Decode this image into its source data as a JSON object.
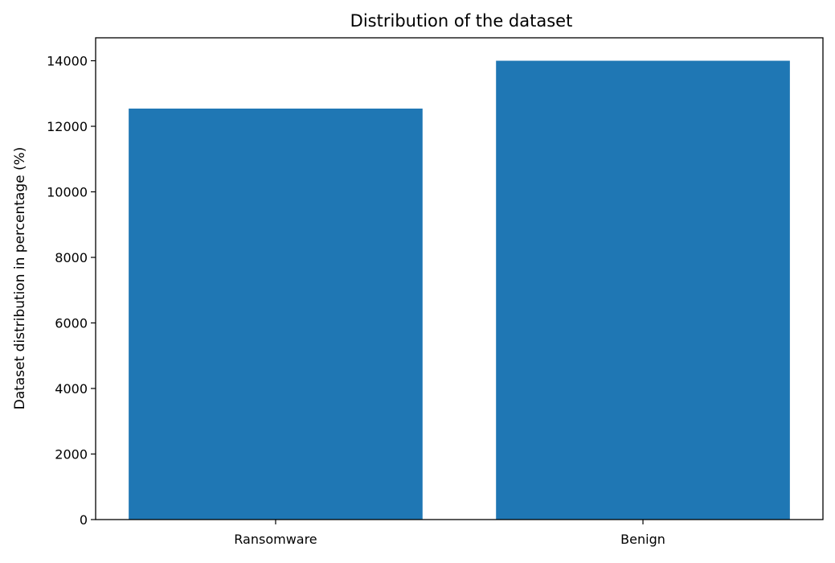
{
  "chart_data": {
    "type": "bar",
    "title": "Distribution of the dataset",
    "xlabel": "",
    "ylabel": "Dataset distribution in percentage (%)",
    "categories": [
      "Ransomware",
      "Benign"
    ],
    "values": [
      12540,
      14000
    ],
    "ylim": [
      0,
      14700
    ],
    "yticks": [
      0,
      2000,
      4000,
      6000,
      8000,
      10000,
      12000,
      14000
    ],
    "ytick_labels": [
      "0",
      "2000",
      "4000",
      "6000",
      "8000",
      "10000",
      "12000",
      "14000"
    ],
    "bar_color": "#1f77b4",
    "grid": false,
    "legend": "none"
  }
}
